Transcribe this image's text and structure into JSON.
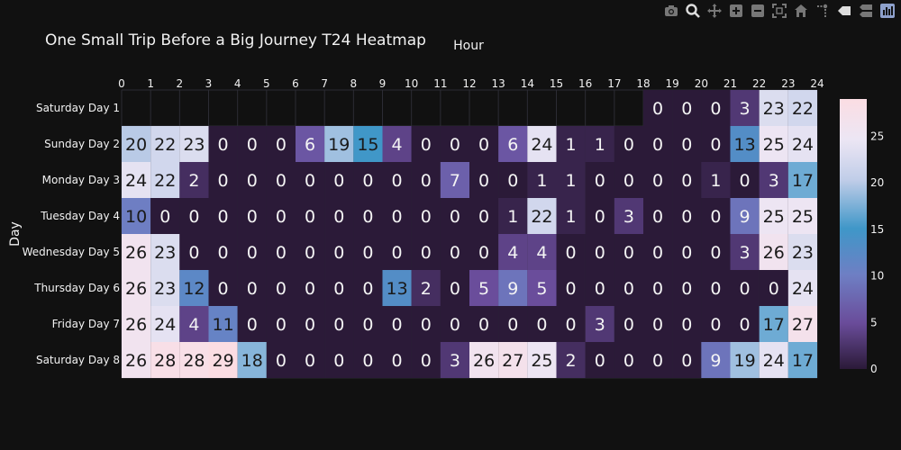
{
  "modebar": {
    "icons": [
      "camera-icon",
      "zoom-icon",
      "pan-icon",
      "zoom-in-icon",
      "zoom-out-icon",
      "autoscale-icon",
      "reset-axes-icon",
      "spike-lines-icon",
      "hover-closest-icon",
      "hover-compare-icon",
      "plotly-logo-icon"
    ]
  },
  "chart_data": {
    "type": "heatmap",
    "title": "One Small Trip Before a Big Journey T24 Heatmap",
    "xlabel": "Hour",
    "ylabel": "Day",
    "x_ticks": [
      0,
      1,
      2,
      3,
      4,
      5,
      6,
      7,
      8,
      9,
      10,
      11,
      12,
      13,
      14,
      15,
      16,
      17,
      18,
      19,
      20,
      21,
      22,
      23,
      24
    ],
    "y_categories": [
      "Saturday Day 1",
      "Sunday Day 2",
      "Monday Day 3",
      "Tuesday Day 4",
      "Wednesday Day 5",
      "Thursday Day 6",
      "Friday Day 7",
      "Saturday Day 8"
    ],
    "z": [
      [
        null,
        null,
        null,
        null,
        null,
        null,
        null,
        null,
        null,
        null,
        null,
        null,
        null,
        null,
        null,
        null,
        null,
        null,
        0,
        0,
        0,
        3,
        23,
        22
      ],
      [
        20,
        22,
        23,
        0,
        0,
        0,
        6,
        19,
        15,
        4,
        0,
        0,
        0,
        6,
        24,
        1,
        1,
        0,
        0,
        0,
        0,
        13,
        25,
        24
      ],
      [
        24,
        22,
        2,
        0,
        0,
        0,
        0,
        0,
        0,
        0,
        0,
        7,
        0,
        0,
        1,
        1,
        0,
        0,
        0,
        0,
        1,
        0,
        3,
        17
      ],
      [
        10,
        0,
        0,
        0,
        0,
        0,
        0,
        0,
        0,
        0,
        0,
        0,
        0,
        1,
        22,
        1,
        0,
        3,
        0,
        0,
        0,
        9,
        25,
        25
      ],
      [
        26,
        23,
        0,
        0,
        0,
        0,
        0,
        0,
        0,
        0,
        0,
        0,
        0,
        4,
        4,
        0,
        0,
        0,
        0,
        0,
        0,
        3,
        26,
        23
      ],
      [
        26,
        23,
        12,
        0,
        0,
        0,
        0,
        0,
        0,
        13,
        2,
        0,
        5,
        9,
        5,
        0,
        0,
        0,
        0,
        0,
        0,
        0,
        0,
        24
      ],
      [
        26,
        24,
        4,
        11,
        0,
        0,
        0,
        0,
        0,
        0,
        0,
        0,
        0,
        0,
        0,
        0,
        3,
        0,
        0,
        0,
        0,
        0,
        17,
        27
      ],
      [
        26,
        28,
        28,
        29,
        18,
        0,
        0,
        0,
        0,
        0,
        0,
        3,
        26,
        27,
        25,
        2,
        0,
        0,
        0,
        0,
        9,
        19,
        24,
        17
      ]
    ],
    "zrange": [
      0,
      29
    ],
    "colorbar_ticks": [
      0,
      5,
      10,
      15,
      20,
      25
    ],
    "colorscale": [
      [
        0.0,
        "#2b1a38"
      ],
      [
        0.17,
        "#6a4c9a"
      ],
      [
        0.35,
        "#6e7fc4"
      ],
      [
        0.52,
        "#3f97c8"
      ],
      [
        0.7,
        "#c0cde8"
      ],
      [
        0.85,
        "#ece6f4"
      ],
      [
        1.0,
        "#fbdde3"
      ]
    ],
    "background": "#111111",
    "grid": true
  }
}
